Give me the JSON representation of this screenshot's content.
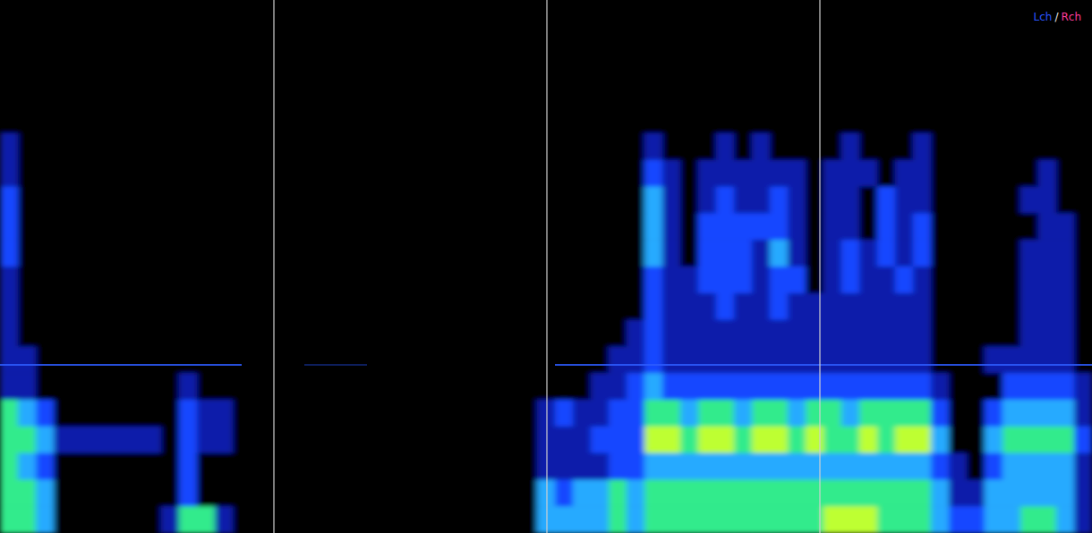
{
  "chart_data": {
    "type": "heatmap",
    "legend_text": [
      "Lch",
      "/",
      "Rch"
    ],
    "zlim": [
      0,
      5
    ],
    "tick_labels": false,
    "cells": [
      [
        0,
        0,
        0,
        0,
        0,
        0,
        0,
        0,
        0,
        0,
        0,
        0,
        0,
        0,
        0,
        0,
        0,
        0,
        0,
        0,
        0,
        0,
        0,
        0,
        0,
        0,
        0,
        0,
        0,
        0,
        0,
        0,
        0,
        0,
        0,
        0,
        0,
        0,
        0,
        0,
        0,
        0,
        0,
        0,
        0,
        0,
        0,
        0,
        0,
        0,
        0,
        0,
        0,
        0,
        0,
        0,
        0,
        0,
        0,
        0,
        0
      ],
      [
        0,
        0,
        0,
        0,
        0,
        0,
        0,
        0,
        0,
        0,
        0,
        0,
        0,
        0,
        0,
        0,
        0,
        0,
        0,
        0,
        0,
        0,
        0,
        0,
        0,
        0,
        0,
        0,
        0,
        0,
        0,
        0,
        0,
        0,
        0,
        0,
        0,
        0,
        0,
        0,
        0,
        0,
        0,
        0,
        0,
        0,
        0,
        0,
        0,
        0,
        0,
        0,
        0,
        0,
        0,
        0,
        0,
        0,
        0,
        0,
        0
      ],
      [
        0,
        0,
        0,
        0,
        0,
        0,
        0,
        0,
        0,
        0,
        0,
        0,
        0,
        0,
        0,
        0,
        0,
        0,
        0,
        0,
        0,
        0,
        0,
        0,
        0,
        0,
        0,
        0,
        0,
        0,
        0,
        0,
        0,
        0,
        0,
        0,
        0,
        0,
        0,
        0,
        0,
        0,
        0,
        0,
        0,
        0,
        0,
        0,
        0,
        0,
        0,
        0,
        0,
        0,
        0,
        0,
        0,
        0,
        0,
        0,
        0
      ],
      [
        0,
        0,
        0,
        0,
        0,
        0,
        0,
        0,
        0,
        0,
        0,
        0,
        0,
        0,
        0,
        0,
        0,
        0,
        0,
        0,
        0,
        0,
        0,
        0,
        0,
        0,
        0,
        0,
        0,
        0,
        0,
        0,
        0,
        0,
        0,
        0,
        0,
        0,
        0,
        0,
        0,
        0,
        0,
        0,
        0,
        0,
        0,
        0,
        0,
        0,
        0,
        0,
        0,
        0,
        0,
        0,
        0,
        0,
        0,
        0,
        0
      ],
      [
        0,
        0,
        0,
        0,
        0,
        0,
        0,
        0,
        0,
        0,
        0,
        0,
        0,
        0,
        0,
        0,
        0,
        0,
        0,
        0,
        0,
        0,
        0,
        0,
        0,
        0,
        0,
        0,
        0,
        0,
        0,
        0,
        0,
        0,
        0,
        0,
        0,
        0,
        0,
        0,
        0,
        0,
        0,
        0,
        0,
        0,
        0,
        0,
        0,
        0,
        0,
        0,
        0,
        0,
        0,
        0,
        0,
        0,
        0,
        0,
        0
      ],
      [
        1,
        0,
        0,
        0,
        0,
        0,
        0,
        0,
        0,
        0,
        0,
        0,
        0,
        0,
        0,
        0,
        0,
        0,
        0,
        0,
        0,
        0,
        0,
        0,
        0,
        0,
        0,
        0,
        0,
        0,
        0,
        0,
        0,
        0,
        0,
        0,
        1,
        0,
        0,
        0,
        1,
        0,
        1,
        0,
        0,
        0,
        0,
        1,
        0,
        0,
        0,
        1,
        0,
        0,
        0,
        0,
        0,
        0,
        0,
        0,
        0
      ],
      [
        1,
        0,
        0,
        0,
        0,
        0,
        0,
        0,
        0,
        0,
        0,
        0,
        0,
        0,
        0,
        0,
        0,
        0,
        0,
        0,
        0,
        0,
        0,
        0,
        0,
        0,
        0,
        0,
        0,
        0,
        0,
        0,
        0,
        0,
        0,
        0,
        2,
        1,
        0,
        1,
        1,
        1,
        1,
        1,
        1,
        0,
        1,
        1,
        1,
        0,
        1,
        1,
        0,
        0,
        0,
        0,
        0,
        0,
        1,
        0,
        0
      ],
      [
        2,
        0,
        0,
        0,
        0,
        0,
        0,
        0,
        0,
        0,
        0,
        0,
        0,
        0,
        0,
        0,
        0,
        0,
        0,
        0,
        0,
        0,
        0,
        0,
        0,
        0,
        0,
        0,
        0,
        0,
        0,
        0,
        0,
        0,
        0,
        0,
        3,
        1,
        0,
        1,
        2,
        1,
        1,
        2,
        1,
        0,
        1,
        1,
        0,
        2,
        1,
        1,
        0,
        0,
        0,
        0,
        0,
        1,
        1,
        0,
        0
      ],
      [
        2,
        0,
        0,
        0,
        0,
        0,
        0,
        0,
        0,
        0,
        0,
        0,
        0,
        0,
        0,
        0,
        0,
        0,
        0,
        0,
        0,
        0,
        0,
        0,
        0,
        0,
        0,
        0,
        0,
        0,
        0,
        0,
        0,
        0,
        0,
        0,
        3,
        1,
        0,
        2,
        2,
        2,
        2,
        2,
        1,
        0,
        1,
        1,
        0,
        2,
        1,
        2,
        0,
        0,
        0,
        0,
        0,
        0,
        1,
        1,
        0
      ],
      [
        2,
        0,
        0,
        0,
        0,
        0,
        0,
        0,
        0,
        0,
        0,
        0,
        0,
        0,
        0,
        0,
        0,
        0,
        0,
        0,
        0,
        0,
        0,
        0,
        0,
        0,
        0,
        0,
        0,
        0,
        0,
        0,
        0,
        0,
        0,
        0,
        3,
        1,
        0,
        2,
        2,
        2,
        1,
        3,
        1,
        0,
        1,
        2,
        1,
        2,
        1,
        2,
        0,
        0,
        0,
        0,
        0,
        1,
        1,
        1,
        0
      ],
      [
        1,
        0,
        0,
        0,
        0,
        0,
        0,
        0,
        0,
        0,
        0,
        0,
        0,
        0,
        0,
        0,
        0,
        0,
        0,
        0,
        0,
        0,
        0,
        0,
        0,
        0,
        0,
        0,
        0,
        0,
        0,
        0,
        0,
        0,
        0,
        0,
        2,
        1,
        1,
        2,
        2,
        2,
        1,
        2,
        2,
        0,
        1,
        2,
        1,
        1,
        2,
        1,
        0,
        0,
        0,
        0,
        0,
        1,
        1,
        1,
        0
      ],
      [
        1,
        0,
        0,
        0,
        0,
        0,
        0,
        0,
        0,
        0,
        0,
        0,
        0,
        0,
        0,
        0,
        0,
        0,
        0,
        0,
        0,
        0,
        0,
        0,
        0,
        0,
        0,
        0,
        0,
        0,
        0,
        0,
        0,
        0,
        0,
        0,
        2,
        1,
        1,
        1,
        2,
        1,
        1,
        2,
        1,
        1,
        1,
        1,
        1,
        1,
        1,
        1,
        0,
        0,
        0,
        0,
        0,
        1,
        1,
        1,
        0
      ],
      [
        1,
        0,
        0,
        0,
        0,
        0,
        0,
        0,
        0,
        0,
        0,
        0,
        0,
        0,
        0,
        0,
        0,
        0,
        0,
        0,
        0,
        0,
        0,
        0,
        0,
        0,
        0,
        0,
        0,
        0,
        0,
        0,
        0,
        0,
        0,
        1,
        2,
        1,
        1,
        1,
        1,
        1,
        1,
        1,
        1,
        1,
        1,
        1,
        1,
        1,
        1,
        1,
        0,
        0,
        0,
        0,
        0,
        1,
        1,
        1,
        0
      ],
      [
        1,
        1,
        0,
        0,
        0,
        0,
        0,
        0,
        0,
        0,
        0,
        0,
        0,
        0,
        0,
        0,
        0,
        0,
        0,
        0,
        0,
        0,
        0,
        0,
        0,
        0,
        0,
        0,
        0,
        0,
        0,
        0,
        0,
        0,
        1,
        1,
        2,
        1,
        1,
        1,
        1,
        1,
        1,
        1,
        1,
        1,
        1,
        1,
        1,
        1,
        1,
        1,
        0,
        0,
        0,
        1,
        1,
        1,
        1,
        1,
        0
      ],
      [
        1,
        1,
        0,
        0,
        0,
        0,
        0,
        0,
        0,
        0,
        1,
        0,
        0,
        0,
        0,
        0,
        0,
        0,
        0,
        0,
        0,
        0,
        0,
        0,
        0,
        0,
        0,
        0,
        0,
        0,
        0,
        0,
        0,
        1,
        1,
        2,
        3,
        2,
        2,
        2,
        2,
        2,
        2,
        2,
        2,
        2,
        2,
        2,
        2,
        2,
        2,
        2,
        1,
        0,
        0,
        0,
        2,
        2,
        2,
        2,
        1
      ],
      [
        4,
        3,
        2,
        0,
        0,
        0,
        0,
        0,
        0,
        0,
        2,
        1,
        1,
        0,
        0,
        0,
        0,
        0,
        0,
        0,
        0,
        0,
        0,
        0,
        0,
        0,
        0,
        0,
        0,
        0,
        1,
        2,
        1,
        1,
        2,
        2,
        4,
        4,
        3,
        4,
        4,
        3,
        4,
        4,
        3,
        4,
        4,
        3,
        4,
        4,
        4,
        4,
        2,
        0,
        0,
        2,
        3,
        3,
        3,
        3,
        1
      ],
      [
        4,
        4,
        3,
        1,
        1,
        1,
        1,
        1,
        1,
        0,
        2,
        1,
        1,
        0,
        0,
        0,
        0,
        0,
        0,
        0,
        0,
        0,
        0,
        0,
        0,
        0,
        0,
        0,
        0,
        0,
        1,
        1,
        1,
        2,
        2,
        2,
        5,
        5,
        4,
        5,
        5,
        4,
        5,
        5,
        4,
        5,
        4,
        4,
        5,
        4,
        5,
        5,
        3,
        0,
        0,
        3,
        4,
        4,
        4,
        4,
        2
      ],
      [
        4,
        3,
        2,
        0,
        0,
        0,
        0,
        0,
        0,
        0,
        2,
        0,
        0,
        0,
        0,
        0,
        0,
        0,
        0,
        0,
        0,
        0,
        0,
        0,
        0,
        0,
        0,
        0,
        0,
        0,
        1,
        1,
        1,
        1,
        2,
        2,
        3,
        3,
        3,
        3,
        3,
        3,
        3,
        3,
        3,
        3,
        3,
        3,
        3,
        3,
        3,
        3,
        2,
        1,
        0,
        2,
        3,
        3,
        3,
        3,
        1
      ],
      [
        4,
        4,
        3,
        0,
        0,
        0,
        0,
        0,
        0,
        0,
        2,
        0,
        0,
        0,
        0,
        0,
        0,
        0,
        0,
        0,
        0,
        0,
        0,
        0,
        0,
        0,
        0,
        0,
        0,
        0,
        3,
        2,
        3,
        3,
        4,
        3,
        4,
        4,
        4,
        4,
        4,
        4,
        4,
        4,
        4,
        4,
        4,
        4,
        4,
        4,
        4,
        4,
        3,
        1,
        1,
        3,
        3,
        3,
        3,
        3,
        1
      ],
      [
        4,
        4,
        3,
        0,
        0,
        0,
        0,
        0,
        0,
        1,
        4,
        4,
        1,
        0,
        0,
        0,
        0,
        0,
        0,
        0,
        0,
        0,
        0,
        0,
        0,
        0,
        0,
        0,
        0,
        0,
        3,
        3,
        3,
        3,
        4,
        3,
        4,
        4,
        4,
        4,
        4,
        4,
        4,
        4,
        4,
        4,
        5,
        5,
        5,
        4,
        4,
        4,
        3,
        2,
        2,
        3,
        3,
        4,
        4,
        3,
        1
      ]
    ]
  }
}
